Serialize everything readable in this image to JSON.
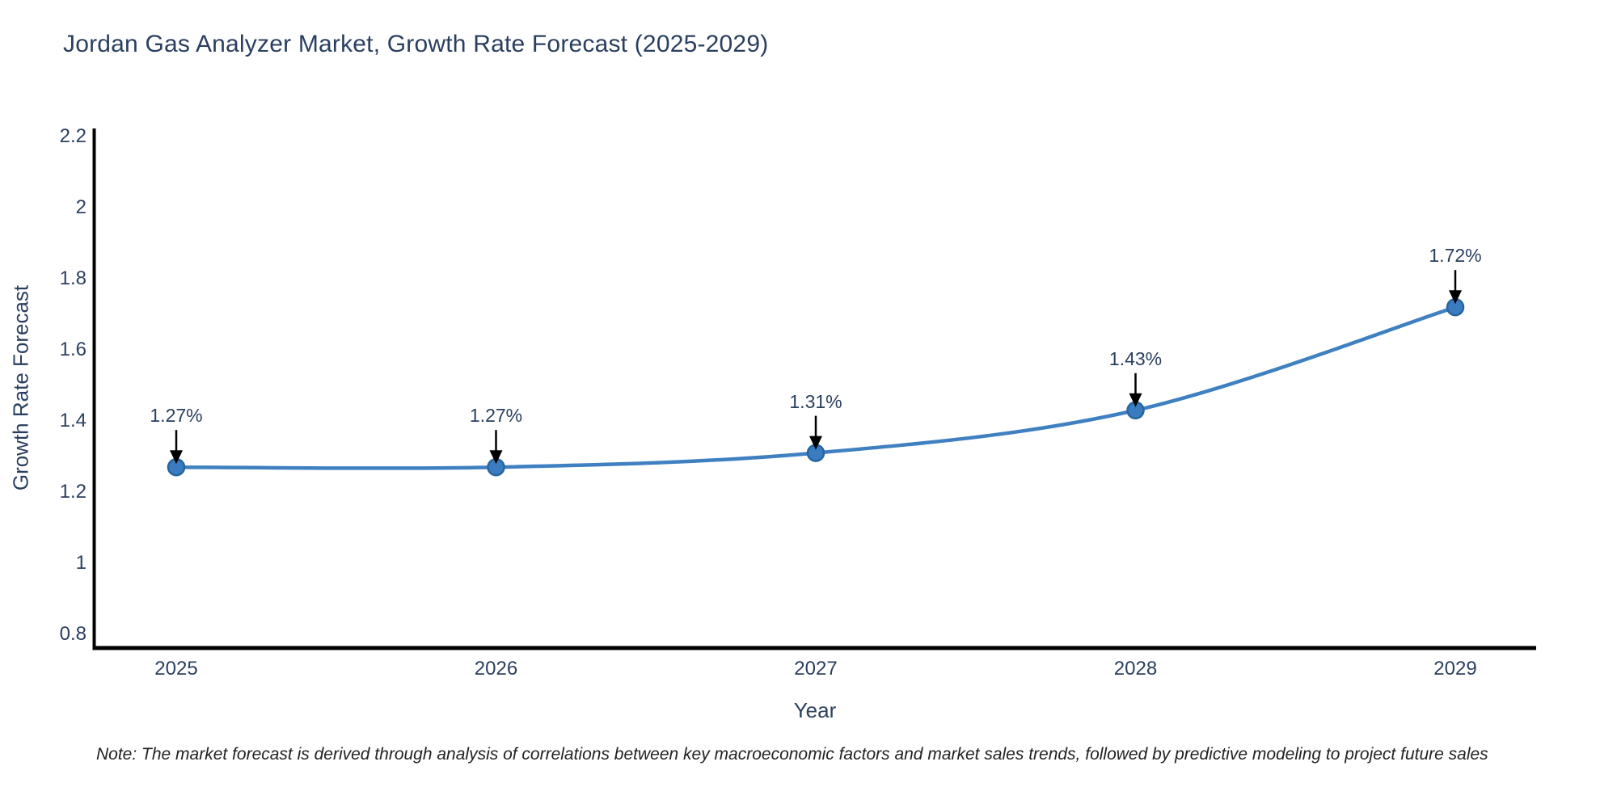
{
  "note": "Note: The market forecast is derived through analysis of correlations between key macroeconomic factors and market sales trends, followed by predictive modeling to project future sales",
  "chart_data": {
    "type": "line",
    "title": "Jordan Gas Analyzer Market, Growth Rate Forecast (2025-2029)",
    "xlabel": "Year",
    "ylabel": "Growth Rate Forecast",
    "categories": [
      2025,
      2026,
      2027,
      2028,
      2029
    ],
    "values": [
      1.27,
      1.27,
      1.31,
      1.43,
      1.72
    ],
    "point_labels": [
      "1.27%",
      "1.27%",
      "1.31%",
      "1.43%",
      "1.72%"
    ],
    "y_ticks": [
      0.8,
      1,
      1.2,
      1.4,
      1.6,
      1.8,
      2,
      2.2
    ],
    "ylim": [
      0.76,
      2.22
    ],
    "grid": false,
    "legend": false,
    "curve": "spline",
    "line_color": "#3f80c1",
    "marker_fill": "#3a7cbf",
    "marker_stroke": "#27659f",
    "axis_color": "#000000",
    "text_color": "#2a3f5f",
    "annotation_arrow_color": "#000000"
  }
}
